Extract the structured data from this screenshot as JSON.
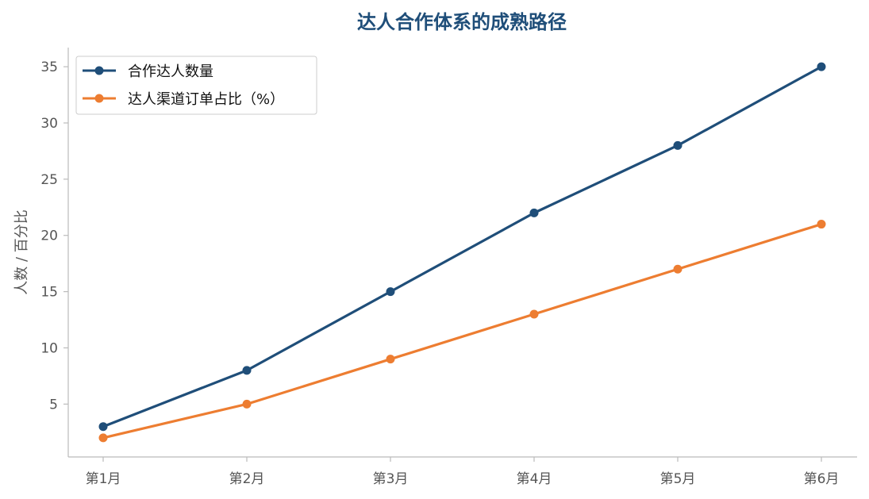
{
  "chart_data": {
    "type": "line",
    "title": "达人合作体系的成熟路径",
    "xlabel": "",
    "ylabel": "人数 / 百分比",
    "categories": [
      "第1月",
      "第2月",
      "第3月",
      "第4月",
      "第5月",
      "第6月"
    ],
    "yticks": [
      5,
      10,
      15,
      20,
      25,
      30,
      35
    ],
    "ylim": [
      0.3,
      36.7
    ],
    "grid": false,
    "legend_position": "top-left",
    "series": [
      {
        "name": "合作达人数量",
        "color": "#1f4e79",
        "values": [
          3,
          8,
          15,
          22,
          28,
          35
        ]
      },
      {
        "name": "达人渠道订单占比（%）",
        "color": "#ed7d31",
        "values": [
          2,
          5,
          9,
          13,
          17,
          21
        ]
      }
    ]
  }
}
